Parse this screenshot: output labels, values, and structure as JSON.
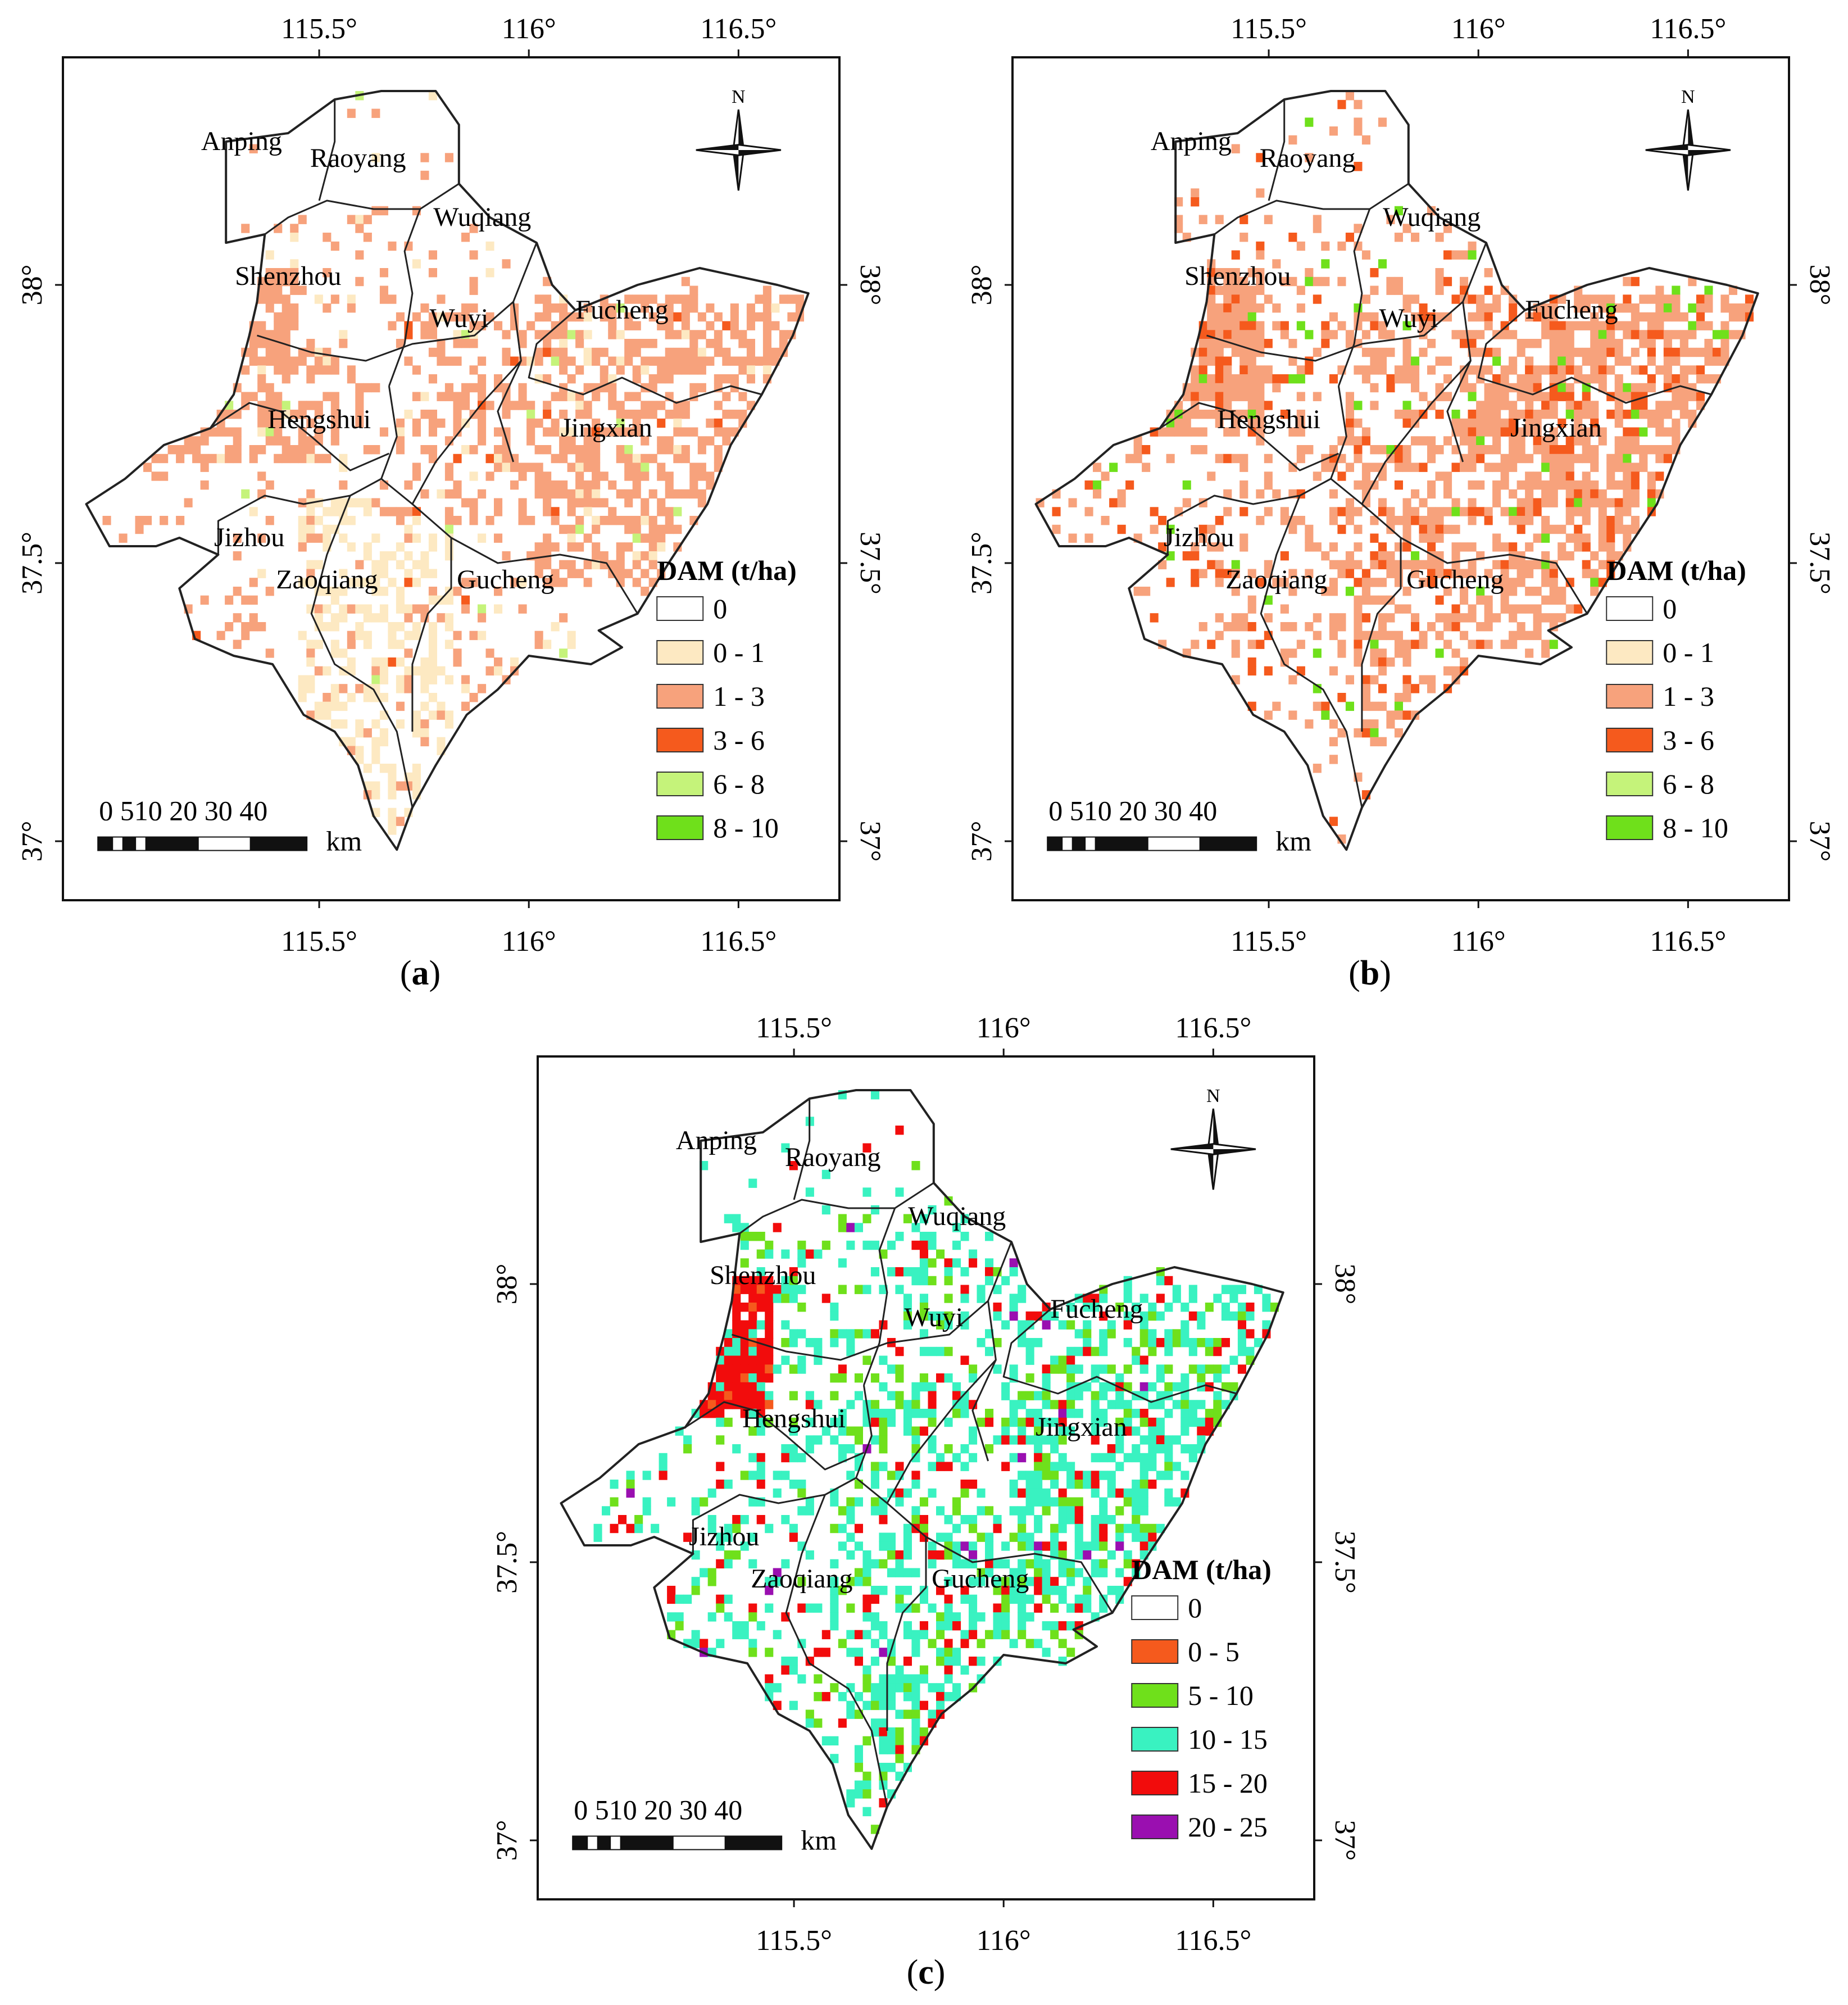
{
  "figure": {
    "panels": [
      {
        "id": "a",
        "caption": "a",
        "legend_title": "DAM (t/ha)",
        "legend": [
          {
            "label": "0",
            "color": "#ffffff"
          },
          {
            "label": "0 - 1",
            "color": "#fde9c2"
          },
          {
            "label": "1 - 3",
            "color": "#f7a27c"
          },
          {
            "label": "3 - 6",
            "color": "#f55a1d"
          },
          {
            "label": "6 - 8",
            "color": "#c5f37a"
          },
          {
            "label": "8 - 10",
            "color": "#6fe01b"
          }
        ]
      },
      {
        "id": "b",
        "caption": "b",
        "legend_title": "DAM (t/ha)",
        "legend": [
          {
            "label": "0",
            "color": "#ffffff"
          },
          {
            "label": "0 - 1",
            "color": "#fde9c2"
          },
          {
            "label": "1 - 3",
            "color": "#f7a27c"
          },
          {
            "label": "3 - 6",
            "color": "#f55a1d"
          },
          {
            "label": "6 - 8",
            "color": "#c5f37a"
          },
          {
            "label": "8 - 10",
            "color": "#6fe01b"
          }
        ]
      },
      {
        "id": "c",
        "caption": "c",
        "legend_title": "DAM (t/ha)",
        "legend": [
          {
            "label": "0",
            "color": "#ffffff"
          },
          {
            "label": "0 - 5",
            "color": "#f55a1d"
          },
          {
            "label": "5 - 10",
            "color": "#6fe01b"
          },
          {
            "label": "10 - 15",
            "color": "#39f2c1"
          },
          {
            "label": "15 - 20",
            "color": "#f20c0c"
          },
          {
            "label": "20 - 25",
            "color": "#9a0fb0"
          }
        ]
      }
    ],
    "lon_ticks": [
      "115.5°",
      "116°",
      "116.5°"
    ],
    "lat_ticks": [
      "38°",
      "37.5°",
      "37°"
    ],
    "scale_numbers": "0 510   20   30   40",
    "scale_unit": "km",
    "north_label": "N",
    "counties": [
      "Anping",
      "Raoyang",
      "Wuqiang",
      "Shenzhou",
      "Wuyi",
      "Fucheng",
      "Hengshui",
      "Jingxian",
      "Jizhou",
      "Zaoqiang",
      "Gucheng"
    ]
  }
}
